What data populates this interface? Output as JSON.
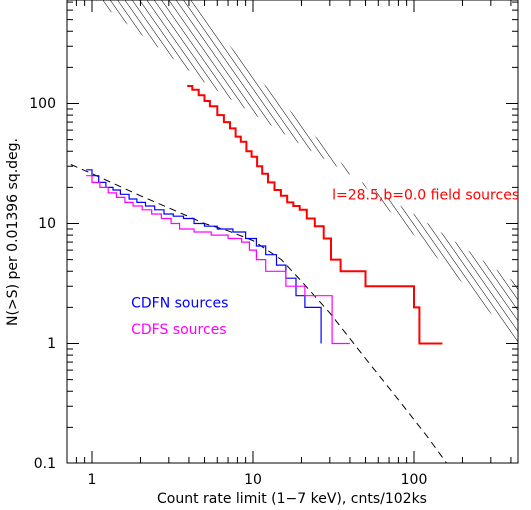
{
  "chart_data": {
    "type": "line",
    "xlabel": "Count rate limit (1−7 keV), cnts/102ks",
    "ylabel": "N(>S) per 0.01396 sq.deg.",
    "x_scale": "log",
    "y_scale": "log",
    "xlim": [
      0.74,
      520
    ],
    "ylim": [
      0.1,
      870
    ],
    "x_tick_labels": [
      "1",
      "10",
      "100"
    ],
    "y_tick_labels": [
      "0.1",
      "1",
      "10",
      "100"
    ],
    "annotations": [
      {
        "name": "field",
        "text": "l=28.5,b=0.0 field sources",
        "color": "#ff0000",
        "x": 31,
        "y": 15.8
      },
      {
        "name": "cdfn",
        "text": "CDFN sources",
        "color": "#0000ff",
        "x": 1.75,
        "y": 2.0
      },
      {
        "name": "cdfs",
        "text": "CDFS sources",
        "color": "#ff00ff",
        "x": 1.75,
        "y": 1.2
      }
    ],
    "band": {
      "label": "hatched region",
      "upper": [
        [
          0.85,
          900
        ],
        [
          5,
          150
        ],
        [
          20,
          45
        ],
        [
          100,
          12
        ],
        [
          480,
          2.9
        ]
      ],
      "lower": [
        [
          3.6,
          900
        ],
        [
          10,
          180
        ],
        [
          50,
          20
        ],
        [
          200,
          3.2
        ],
        [
          480,
          0.9
        ]
      ]
    },
    "model_curve": {
      "style": "dashed",
      "color": "#000000",
      "points": [
        [
          0.74,
          31
        ],
        [
          1,
          26
        ],
        [
          2,
          17
        ],
        [
          3,
          13.5
        ],
        [
          5,
          10
        ],
        [
          7,
          8.7
        ],
        [
          10,
          7.2
        ],
        [
          15,
          5
        ],
        [
          20,
          3.3
        ],
        [
          30,
          1.8
        ],
        [
          50,
          0.75
        ],
        [
          80,
          0.34
        ],
        [
          120,
          0.17
        ],
        [
          160,
          0.1
        ]
      ]
    },
    "series": [
      {
        "name": "l=28.5,b=0.0 field sources",
        "color": "#ff0000",
        "points": [
          [
            3.9,
            140
          ],
          [
            4.2,
            130
          ],
          [
            4.6,
            117
          ],
          [
            5.0,
            105
          ],
          [
            5.4,
            95
          ],
          [
            6.0,
            80
          ],
          [
            6.6,
            70
          ],
          [
            7.2,
            62
          ],
          [
            7.8,
            53
          ],
          [
            8.4,
            48
          ],
          [
            9.1,
            40
          ],
          [
            9.8,
            36
          ],
          [
            10.6,
            30
          ],
          [
            11.4,
            26
          ],
          [
            12.4,
            22
          ],
          [
            13.6,
            19
          ],
          [
            14.9,
            17
          ],
          [
            16.3,
            15
          ],
          [
            17.8,
            14
          ],
          [
            19.5,
            13
          ],
          [
            21.6,
            11
          ],
          [
            24.2,
            9.5
          ],
          [
            27.5,
            7.5
          ],
          [
            30.5,
            5.0
          ],
          [
            35,
            4.0
          ],
          [
            50,
            3.0
          ],
          [
            100,
            2.0
          ],
          [
            108,
            1.0
          ],
          [
            150,
            1.0
          ]
        ]
      },
      {
        "name": "CDFN sources",
        "color": "#0000ff",
        "points": [
          [
            0.92,
            28
          ],
          [
            1.0,
            25
          ],
          [
            1.1,
            22
          ],
          [
            1.22,
            20
          ],
          [
            1.35,
            19
          ],
          [
            1.5,
            17.5
          ],
          [
            1.7,
            16
          ],
          [
            1.9,
            15
          ],
          [
            2.15,
            14
          ],
          [
            2.45,
            13
          ],
          [
            2.8,
            12
          ],
          [
            3.2,
            11.5
          ],
          [
            3.7,
            11
          ],
          [
            4.3,
            10
          ],
          [
            5.0,
            9.5
          ],
          [
            6.0,
            9.0
          ],
          [
            7.5,
            8.5
          ],
          [
            9.0,
            7.5
          ],
          [
            10.5,
            6.5
          ],
          [
            12.0,
            5.5
          ],
          [
            14.0,
            4.5
          ],
          [
            16.0,
            3.5
          ],
          [
            18.5,
            2.5
          ],
          [
            21.0,
            2.0
          ],
          [
            26.5,
            1.0
          ]
        ]
      },
      {
        "name": "CDFS sources",
        "color": "#ff00ff",
        "points": [
          [
            0.92,
            25
          ],
          [
            1.0,
            22
          ],
          [
            1.12,
            20
          ],
          [
            1.26,
            18
          ],
          [
            1.42,
            16.5
          ],
          [
            1.6,
            15
          ],
          [
            1.8,
            14
          ],
          [
            2.05,
            13
          ],
          [
            2.35,
            12
          ],
          [
            2.7,
            11
          ],
          [
            3.1,
            10
          ],
          [
            3.5,
            9
          ],
          [
            4.3,
            8.5
          ],
          [
            5.5,
            8.0
          ],
          [
            7.0,
            7.5
          ],
          [
            8.5,
            7.0
          ],
          [
            9.5,
            6.0
          ],
          [
            10.5,
            5.0
          ],
          [
            12.0,
            4.0
          ],
          [
            16.0,
            3.0
          ],
          [
            21.0,
            2.5
          ],
          [
            31.0,
            1.0
          ],
          [
            40.0,
            1.0
          ]
        ]
      }
    ]
  }
}
